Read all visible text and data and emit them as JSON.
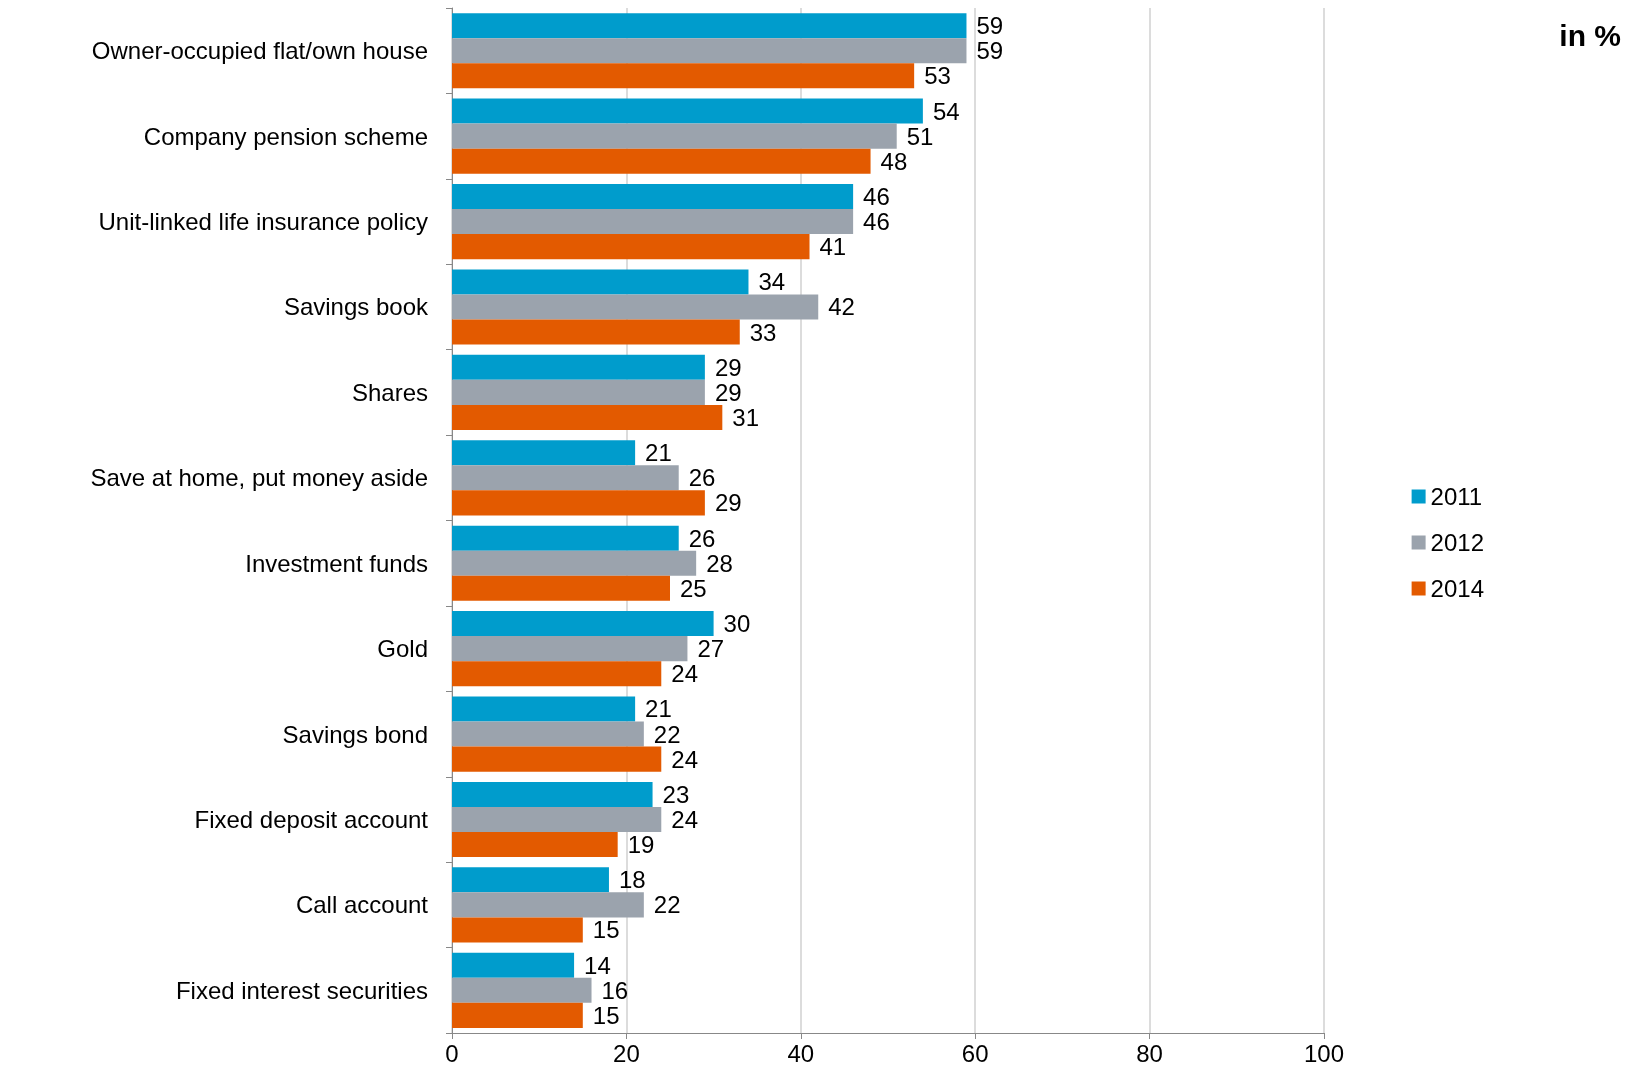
{
  "chart_data": {
    "type": "bar",
    "orientation": "horizontal",
    "categories": [
      "Owner-occupied flat/own house",
      "Company pension scheme",
      "Unit-linked life insurance policy",
      "Savings book",
      "Shares",
      "Save at home, put money aside",
      "Investment funds",
      "Gold",
      "Savings bond",
      "Fixed deposit account",
      "Call account",
      "Fixed interest securities"
    ],
    "series": [
      {
        "name": "2011",
        "color": "#009ccc",
        "values": [
          59,
          54,
          46,
          34,
          29,
          21,
          26,
          30,
          21,
          23,
          18,
          14
        ]
      },
      {
        "name": "2012",
        "color": "#9ba3ad",
        "values": [
          59,
          51,
          46,
          42,
          29,
          26,
          28,
          27,
          22,
          24,
          22,
          16
        ]
      },
      {
        "name": "2014",
        "color": "#e35a00",
        "values": [
          53,
          48,
          41,
          33,
          31,
          29,
          25,
          24,
          24,
          19,
          15,
          15
        ]
      }
    ],
    "xlim": [
      0,
      100
    ],
    "xticks": [
      0,
      20,
      40,
      60,
      80,
      100
    ],
    "grid": "x",
    "legend": "right",
    "data_labels": true,
    "annotations": [
      "in %"
    ]
  }
}
